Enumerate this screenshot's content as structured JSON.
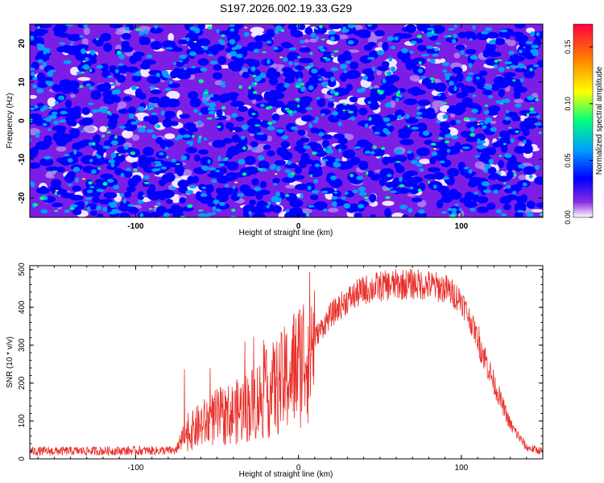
{
  "title": "S197.2026.002.19.33.G29",
  "chart_data": [
    {
      "type": "heatmap",
      "xlabel": "Height of straight line (km)",
      "ylabel": "Frequency (Hz)",
      "xlim": [
        -165,
        150
      ],
      "ylim": [
        -25,
        25
      ],
      "xticks": [
        -100,
        0,
        100
      ],
      "yticks": [
        -20,
        -10,
        0,
        10,
        20
      ],
      "colorbar": {
        "label": "Normalized spectral amplitude",
        "range": [
          0.0,
          0.17
        ],
        "ticks": [
          "0.00",
          "0.05",
          "0.10",
          "0.15"
        ],
        "colors": [
          "#ffffff",
          "#8a2be2",
          "#0000ff",
          "#00a0ff",
          "#00ff80",
          "#ffff00",
          "#ff8000",
          "#ff0040"
        ]
      },
      "description_values": {
        "typical_amplitude": 0.02,
        "peak_amplitude": 0.12
      }
    },
    {
      "type": "line",
      "xlabel": "Height of straight line (km)",
      "ylabel": "SNR (10 * v/v)",
      "xlim": [
        -165,
        150
      ],
      "ylim": [
        0,
        510
      ],
      "xticks": [
        -100,
        0,
        100
      ],
      "yticks": [
        0,
        100,
        200,
        300,
        400,
        500
      ],
      "series": [
        {
          "name": "SNR",
          "color": "#e8302a",
          "envelope_x": [
            -165,
            -75,
            -70,
            -60,
            -50,
            -40,
            -30,
            -20,
            -10,
            0,
            10,
            20,
            30,
            40,
            50,
            60,
            70,
            80,
            90,
            100,
            110,
            120,
            130,
            140,
            150
          ],
          "envelope_y": [
            20,
            22,
            60,
            90,
            110,
            120,
            140,
            170,
            200,
            250,
            320,
            380,
            420,
            445,
            455,
            460,
            462,
            458,
            450,
            420,
            320,
            200,
            90,
            30,
            20
          ]
        }
      ]
    }
  ]
}
